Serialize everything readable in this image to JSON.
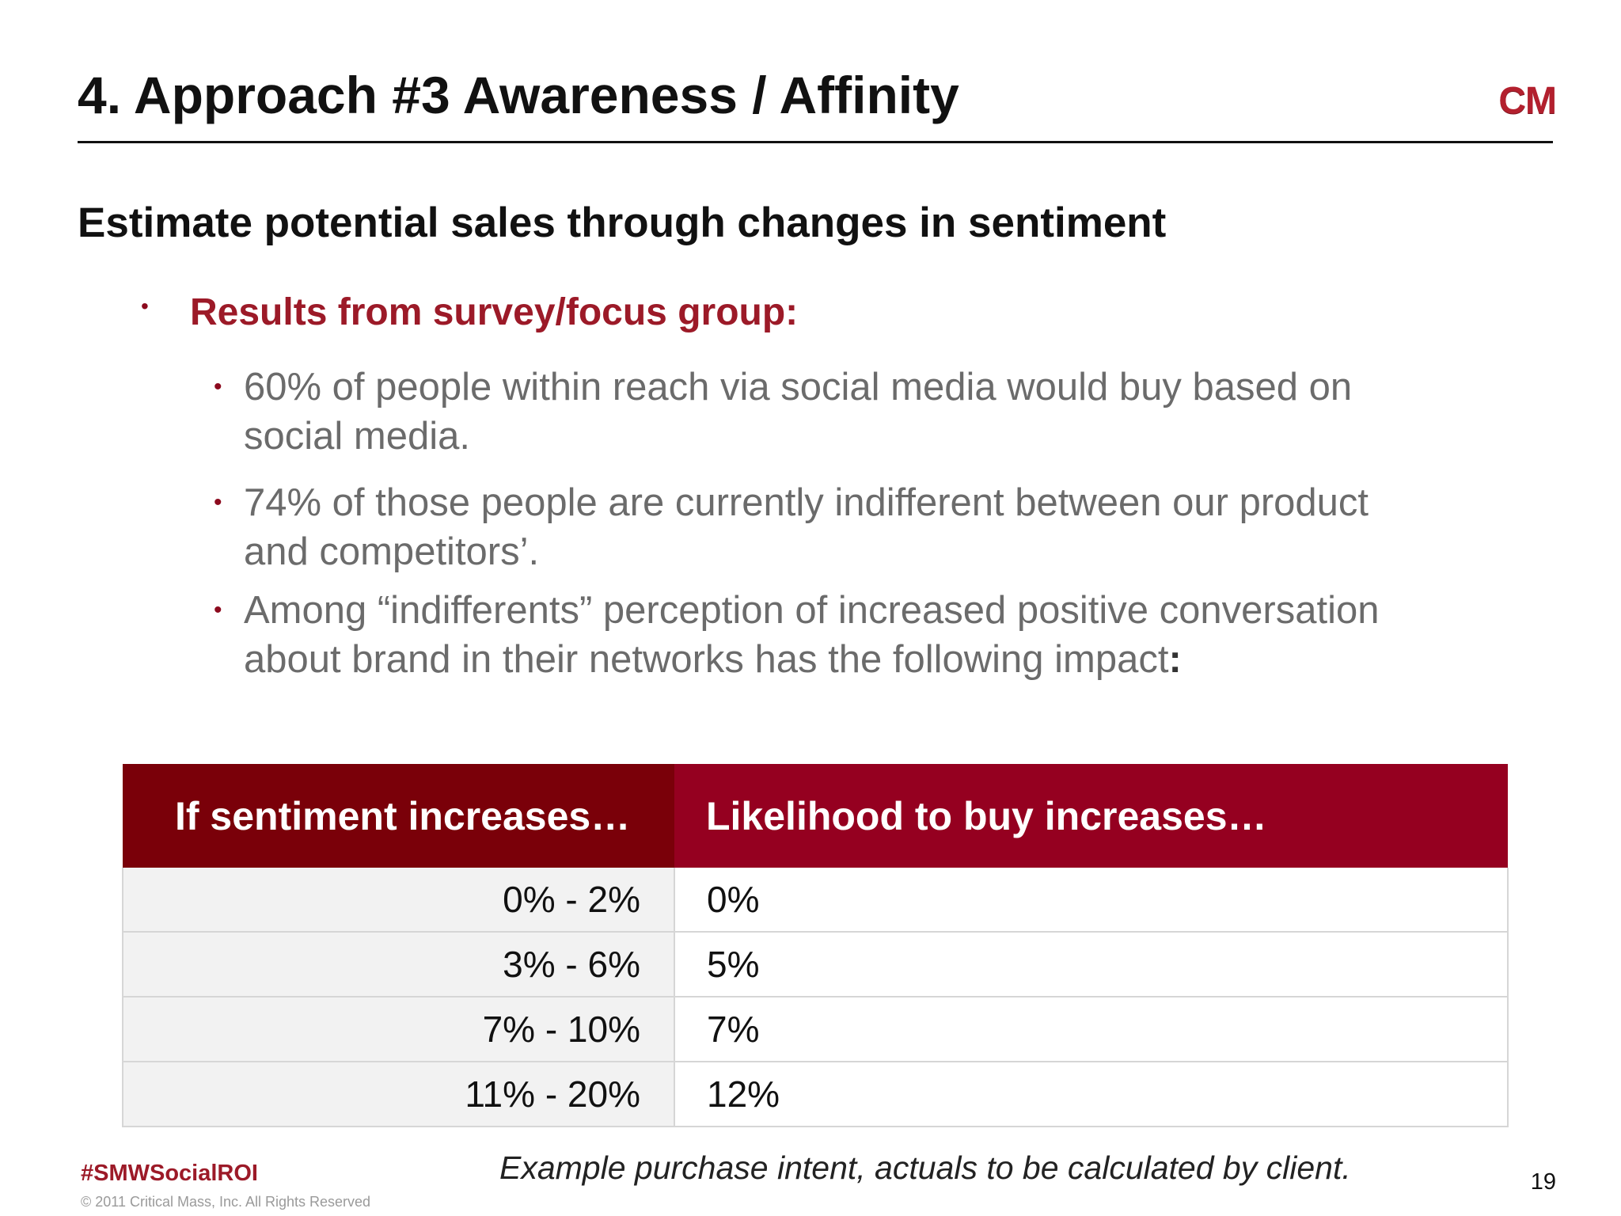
{
  "header": {
    "title": "4. Approach #3 Awareness / Affinity",
    "logo_text": "CM"
  },
  "subtitle": "Estimate potential sales through changes in sentiment",
  "bullets": {
    "level1": "Results from survey/focus group:",
    "items": [
      "60% of people within reach via social media would buy based on social media.",
      "74% of those people are currently indifferent between our product and competitors’.",
      "Among “indifferents” perception of increased positive conversation about brand in their networks has the following impact"
    ],
    "last_colon": ":"
  },
  "table": {
    "headers": [
      "If sentiment increases…",
      "Likelihood to buy increases…"
    ],
    "rows": [
      [
        "0% - 2%",
        "0%"
      ],
      [
        "3% - 6%",
        "5%"
      ],
      [
        "7% - 10%",
        "7%"
      ],
      [
        "11% - 20%",
        "12%"
      ]
    ]
  },
  "footnote": "Example purchase intent, actuals to be calculated by client.",
  "footer": {
    "hashtag": "#SMWSocialROI",
    "copyright": "© 2011 Critical Mass, Inc. All Rights Reserved",
    "page_number": "19"
  },
  "colors": {
    "accent_red": "#9c1a28",
    "header_dark": "#7a0009",
    "header_red": "#950020"
  }
}
